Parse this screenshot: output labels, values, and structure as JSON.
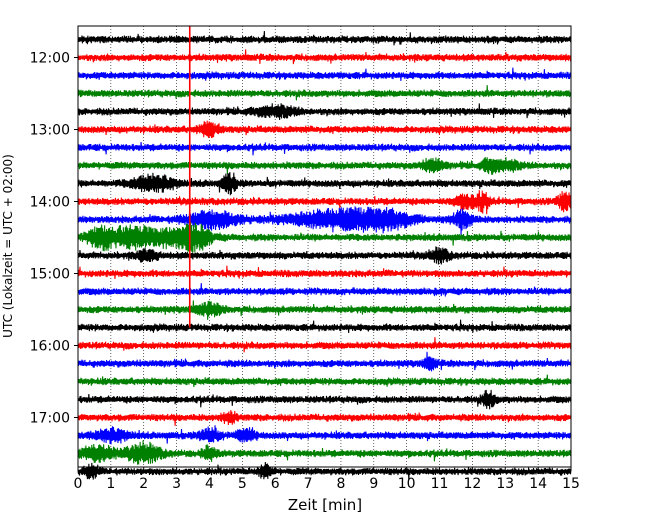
{
  "chart_data": {
    "type": "line",
    "title": "",
    "xlabel": "Zeit  [min]",
    "ylabel": "UTC (Lokalzeit = UTC + 02:00)",
    "xlim": [
      0,
      15
    ],
    "x_ticks": [
      "0",
      "1",
      "2",
      "3",
      "4",
      "5",
      "6",
      "7",
      "8",
      "9",
      "10",
      "11",
      "12",
      "13",
      "14",
      "15"
    ],
    "y_ticks": [
      "12:00",
      "13:00",
      "14:00",
      "15:00",
      "16:00",
      "17:00"
    ],
    "grid": true,
    "trace_colors": [
      "#000000",
      "#ff0000",
      "#0000ff",
      "#008000"
    ],
    "trace_start_times": [
      "11:45",
      "12:00",
      "12:15",
      "12:30",
      "12:45",
      "13:00",
      "13:15",
      "13:30",
      "13:45",
      "14:00",
      "14:15",
      "14:30",
      "14:45",
      "15:00",
      "15:15",
      "15:30",
      "15:45",
      "16:00",
      "16:15",
      "16:30",
      "16:45",
      "17:00",
      "17:15",
      "17:30",
      "17:45"
    ],
    "trace_minutes_per_row": 15,
    "event_marker": {
      "x": 3.4,
      "from_trace": 1,
      "to_trace": 16,
      "color": "#ff0000"
    }
  }
}
